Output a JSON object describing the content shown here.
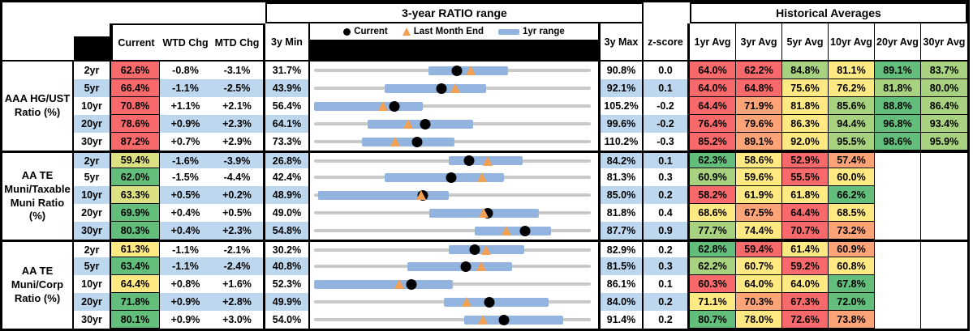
{
  "headers": {
    "range_title": "3-year RATIO range",
    "hist_title": "Historical Averages",
    "current": "Current",
    "wtd": "WTD Chg",
    "mtd": "MTD Chg",
    "min3y": "3y Min",
    "max3y": "3y Max",
    "zscore": "z-score",
    "avg_cols": [
      "1yr Avg",
      "3yr Avg",
      "5yr Avg",
      "10yr Avg",
      "20yr Avg",
      "30yr Avg"
    ]
  },
  "legend": {
    "current": "Current",
    "last_month": "Last Month End",
    "range_1yr": "1yr range"
  },
  "palette": {
    "r": "#F8696B",
    "o": "#FCA377",
    "y": "#FFE983",
    "yg": "#DCDF82",
    "lg": "#A8D27F",
    "g": "#63BE7B"
  },
  "colors": {
    "row_alt": "#BDD7EE",
    "bar_blue": "#92B4DE",
    "line_gray": "#C9C9C9",
    "triangle_orange": "#F2A054",
    "dot_black": "#000000"
  },
  "chart_data": {
    "type": "range-table",
    "note": "Each row's dot/triangle/bar plotted on a per-row scale from 3y Min to 3y Max; bar = estimated 1yr range low/high; lm = last month end value; values in percent",
    "sections": [
      {
        "label": "AAA HG/UST\nRatio (%)",
        "rows": [
          {
            "tenor": "2yr",
            "cur": 62.6,
            "cur_c": "r",
            "wtd": "-0.8%",
            "mtd": "-3.1%",
            "min": 31.7,
            "max": 90.8,
            "bar": [
              56.5,
              73.7
            ],
            "lm": 65.7,
            "z": "0.0",
            "avgs": [
              [
                "64.0%",
                "r"
              ],
              [
                "62.2%",
                "r"
              ],
              [
                "84.8%",
                "lg"
              ],
              [
                "81.1%",
                "y"
              ],
              [
                "89.1%",
                "g"
              ],
              [
                "83.7%",
                "lg"
              ]
            ]
          },
          {
            "tenor": "5yr",
            "cur": 66.4,
            "cur_c": "r",
            "wtd": "-1.1%",
            "mtd": "-2.5%",
            "min": 43.9,
            "max": 92.1,
            "bar": [
              56.3,
              74.3
            ],
            "lm": 68.9,
            "z": "0.1",
            "avgs": [
              [
                "64.0%",
                "r"
              ],
              [
                "64.8%",
                "r"
              ],
              [
                "75.6%",
                "y"
              ],
              [
                "76.2%",
                "y"
              ],
              [
                "81.8%",
                "lg"
              ],
              [
                "80.0%",
                "lg"
              ]
            ]
          },
          {
            "tenor": "10yr",
            "cur": 70.8,
            "cur_c": "r",
            "wtd": "+1.1%",
            "mtd": "+2.1%",
            "min": 56.4,
            "max": 105.2,
            "bar": [
              56.4,
              75.9
            ],
            "lm": 68.7,
            "z": "-0.2",
            "avgs": [
              [
                "64.4%",
                "r"
              ],
              [
                "71.9%",
                "o"
              ],
              [
                "81.8%",
                "y"
              ],
              [
                "85.6%",
                "lg"
              ],
              [
                "88.8%",
                "g"
              ],
              [
                "86.4%",
                "lg"
              ]
            ]
          },
          {
            "tenor": "20yr",
            "cur": 78.6,
            "cur_c": "r",
            "wtd": "+0.9%",
            "mtd": "+2.3%",
            "min": 64.1,
            "max": 99.6,
            "bar": [
              71.1,
              84.8
            ],
            "lm": 76.3,
            "z": "-0.2",
            "avgs": [
              [
                "76.4%",
                "r"
              ],
              [
                "79.6%",
                "o"
              ],
              [
                "86.3%",
                "y"
              ],
              [
                "94.4%",
                "lg"
              ],
              [
                "96.8%",
                "g"
              ],
              [
                "93.4%",
                "lg"
              ]
            ]
          },
          {
            "tenor": "30yr",
            "cur": 87.2,
            "cur_c": "r",
            "wtd": "+0.7%",
            "mtd": "+2.9%",
            "min": 73.3,
            "max": 110.2,
            "bar": [
              79.8,
              92.3
            ],
            "lm": 84.3,
            "z": "-0.3",
            "avgs": [
              [
                "85.2%",
                "r"
              ],
              [
                "89.1%",
                "o"
              ],
              [
                "92.0%",
                "y"
              ],
              [
                "95.5%",
                "lg"
              ],
              [
                "98.6%",
                "g"
              ],
              [
                "95.9%",
                "lg"
              ]
            ]
          }
        ]
      },
      {
        "label": "AA TE\nMuni/Taxable\nMuni Ratio\n(%)",
        "rows": [
          {
            "tenor": "2yr",
            "cur": 59.4,
            "cur_c": "yg",
            "wtd": "-1.6%",
            "mtd": "-3.9%",
            "min": 26.8,
            "max": 84.2,
            "bar": [
              55.2,
              70.8
            ],
            "lm": 63.3,
            "z": "0.1",
            "avgs": [
              [
                "62.3%",
                "g"
              ],
              [
                "58.6%",
                "y"
              ],
              [
                "52.9%",
                "r"
              ],
              [
                "57.4%",
                "o"
              ],
              null,
              null
            ]
          },
          {
            "tenor": "5yr",
            "cur": 62.0,
            "cur_c": "g",
            "wtd": "-1.5%",
            "mtd": "-4.4%",
            "min": 42.4,
            "max": 81.3,
            "bar": [
              52.4,
              69.5
            ],
            "lm": 66.4,
            "z": "0.3",
            "avgs": [
              [
                "60.9%",
                "lg"
              ],
              [
                "59.6%",
                "y"
              ],
              [
                "55.5%",
                "r"
              ],
              [
                "60.0%",
                "y"
              ],
              null,
              null
            ]
          },
          {
            "tenor": "10yr",
            "cur": 63.3,
            "cur_c": "yg",
            "wtd": "+0.5%",
            "mtd": "+0.2%",
            "min": 48.9,
            "max": 85.0,
            "bar": [
              49.4,
              66.7
            ],
            "lm": 63.1,
            "z": "0.2",
            "avgs": [
              [
                "58.2%",
                "r"
              ],
              [
                "61.9%",
                "y"
              ],
              [
                "61.8%",
                "y"
              ],
              [
                "66.2%",
                "g"
              ],
              null,
              null
            ]
          },
          {
            "tenor": "20yr",
            "cur": 69.9,
            "cur_c": "g",
            "wtd": "+0.4%",
            "mtd": "+0.5%",
            "min": 49.0,
            "max": 81.8,
            "bar": [
              62.9,
              76.1
            ],
            "lm": 69.4,
            "z": "0.4",
            "avgs": [
              [
                "68.6%",
                "y"
              ],
              [
                "67.5%",
                "o"
              ],
              [
                "64.4%",
                "r"
              ],
              [
                "68.5%",
                "y"
              ],
              null,
              null
            ]
          },
          {
            "tenor": "30yr",
            "cur": 80.3,
            "cur_c": "g",
            "wtd": "+0.4%",
            "mtd": "+2.3%",
            "min": 54.8,
            "max": 87.7,
            "bar": [
              74.2,
              83.4
            ],
            "lm": 78.0,
            "z": "0.9",
            "avgs": [
              [
                "77.7%",
                "lg"
              ],
              [
                "74.4%",
                "y"
              ],
              [
                "70.7%",
                "r"
              ],
              [
                "73.2%",
                "o"
              ],
              null,
              null
            ]
          }
        ]
      },
      {
        "label": "AA TE\nMuni/Corp\nRatio (%)",
        "rows": [
          {
            "tenor": "2yr",
            "cur": 61.3,
            "cur_c": "y",
            "wtd": "-1.1%",
            "mtd": "-2.1%",
            "min": 30.2,
            "max": 82.9,
            "bar": [
              56.2,
              70.8
            ],
            "lm": 63.4,
            "z": "0.2",
            "avgs": [
              [
                "62.8%",
                "g"
              ],
              [
                "59.4%",
                "r"
              ],
              [
                "61.4%",
                "y"
              ],
              [
                "60.9%",
                "o"
              ],
              null,
              null
            ]
          },
          {
            "tenor": "5yr",
            "cur": 63.4,
            "cur_c": "g",
            "wtd": "-1.1%",
            "mtd": "-2.4%",
            "min": 40.8,
            "max": 81.5,
            "bar": [
              54.7,
              70.4
            ],
            "lm": 65.8,
            "z": "0.3",
            "avgs": [
              [
                "62.2%",
                "lg"
              ],
              [
                "60.7%",
                "y"
              ],
              [
                "59.2%",
                "r"
              ],
              [
                "60.8%",
                "y"
              ],
              null,
              null
            ]
          },
          {
            "tenor": "10yr",
            "cur": 64.4,
            "cur_c": "y",
            "wtd": "+0.8%",
            "mtd": "+1.6%",
            "min": 52.3,
            "max": 86.1,
            "bar": [
              52.3,
              69.5
            ],
            "lm": 62.8,
            "z": "0.1",
            "avgs": [
              [
                "60.3%",
                "r"
              ],
              [
                "64.0%",
                "y"
              ],
              [
                "64.0%",
                "y"
              ],
              [
                "67.8%",
                "g"
              ],
              null,
              null
            ]
          },
          {
            "tenor": "20yr",
            "cur": 71.8,
            "cur_c": "g",
            "wtd": "+0.9%",
            "mtd": "+2.8%",
            "min": 49.9,
            "max": 84.0,
            "bar": [
              66.1,
              79.2
            ],
            "lm": 69.0,
            "z": "0.2",
            "avgs": [
              [
                "71.1%",
                "y"
              ],
              [
                "70.3%",
                "o"
              ],
              [
                "67.3%",
                "r"
              ],
              [
                "72.0%",
                "g"
              ],
              null,
              null
            ]
          },
          {
            "tenor": "30yr",
            "cur": 80.1,
            "cur_c": "g",
            "wtd": "+0.9%",
            "mtd": "+3.0%",
            "min": 54.0,
            "max": 91.4,
            "bar": [
              74.6,
              88.2
            ],
            "lm": 77.1,
            "z": "0.2",
            "avgs": [
              [
                "80.7%",
                "g"
              ],
              [
                "78.0%",
                "y"
              ],
              [
                "72.6%",
                "r"
              ],
              [
                "73.8%",
                "o"
              ],
              null,
              null
            ]
          }
        ]
      }
    ]
  }
}
